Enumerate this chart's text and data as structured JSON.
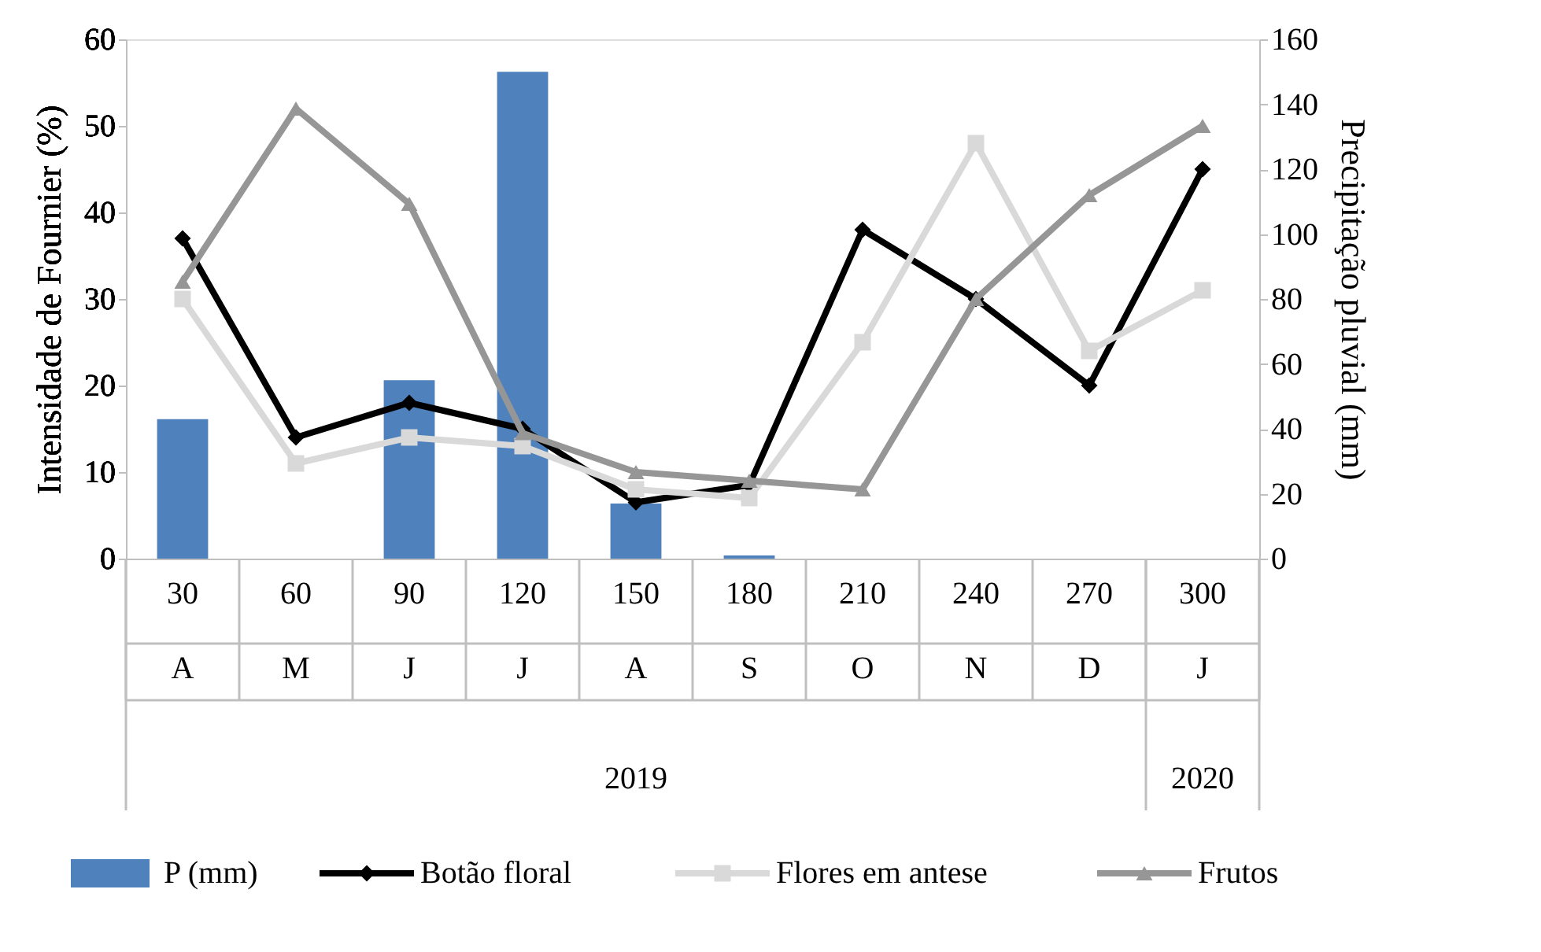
{
  "chart_data": {
    "type": "line",
    "categories": [
      "30",
      "60",
      "90",
      "120",
      "150",
      "180",
      "210",
      "240",
      "270",
      "300"
    ],
    "ylabel": "Intensidade de Fournier (%)",
    "y2label": "Precipitação pluvial (mm)",
    "ylim": [
      0,
      60
    ],
    "yticks": [
      0,
      10,
      20,
      30,
      40,
      50,
      60
    ],
    "y2lim": [
      0,
      160
    ],
    "y2ticks": [
      0,
      20,
      40,
      60,
      80,
      100,
      120,
      140,
      160
    ],
    "grid": false,
    "legend": "bottom",
    "series": [
      {
        "name": "P (mm)",
        "type": "bar",
        "axis": "y2",
        "color": "#4f81bd",
        "values": [
          43,
          0,
          55,
          150,
          17,
          1,
          0,
          0,
          0,
          0
        ]
      },
      {
        "name": "Botão floral",
        "marker": "diamond",
        "color": "#000000",
        "values": [
          37,
          14,
          18,
          15,
          6.5,
          8.5,
          38,
          30,
          20,
          45
        ]
      },
      {
        "name": "Flores em antese",
        "marker": "square",
        "color": "#d9d9d9",
        "values": [
          30,
          11,
          14,
          13,
          8,
          7,
          25,
          48,
          24,
          31
        ]
      },
      {
        "name": "Frutos",
        "marker": "triangle",
        "color": "#969696",
        "values": [
          32,
          52,
          41,
          14.5,
          10,
          9,
          8,
          30,
          42,
          50
        ]
      }
    ],
    "annotations": [
      "A",
      "M",
      "J",
      "J",
      "A",
      "S",
      "O",
      "N",
      "D",
      "J",
      "2019",
      "2020"
    ]
  }
}
